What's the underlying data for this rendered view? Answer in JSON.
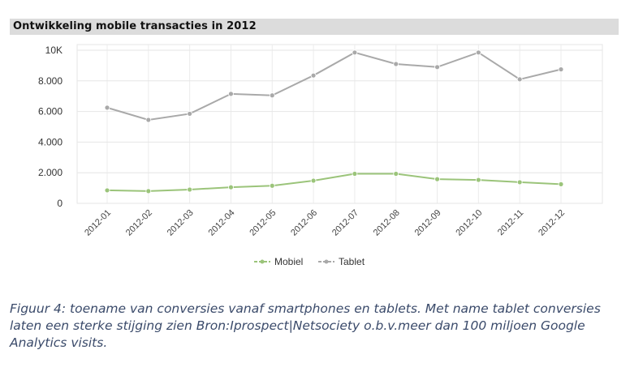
{
  "chart_data": {
    "type": "line",
    "title": "Ontwikkeling mobile transacties in 2012",
    "categories": [
      "2012-01",
      "2012-02",
      "2012-03",
      "2012-04",
      "2012-05",
      "2012-06",
      "2012-07",
      "2012-08",
      "2012-09",
      "2012-10",
      "2012-11",
      "2012-12"
    ],
    "y_ticks": [
      "0",
      "2.000",
      "4.000",
      "6.000",
      "8.000",
      "10K"
    ],
    "ylim": [
      0,
      10000
    ],
    "grid": true,
    "legend_position": "bottom",
    "series": [
      {
        "name": "Mobiel",
        "color": "#9bc47a",
        "values": [
          850,
          800,
          900,
          1050,
          1150,
          1480,
          1930,
          1930,
          1580,
          1530,
          1380,
          1250
        ]
      },
      {
        "name": "Tablet",
        "color": "#a9a9a9",
        "values": [
          6250,
          5450,
          5850,
          7150,
          7050,
          8350,
          9850,
          9100,
          8900,
          9850,
          8100,
          8750
        ]
      }
    ]
  },
  "caption": "Figuur 4: toename van conversies vanaf smartphones en tablets. Met name tablet conversies laten een sterke stijging zien Bron:Iprospect|Netsociety o.b.v.meer dan 100 miljoen Google Analytics visits."
}
